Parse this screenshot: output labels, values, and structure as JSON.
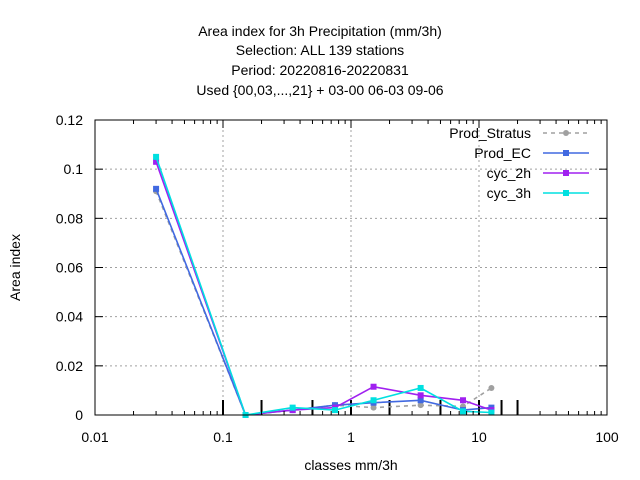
{
  "title_lines": [
    "Area index  for 3h Precipitation (mm/3h)",
    "Selection: ALL    139 stations",
    "Period: 20220816-20220831",
    "Used {00,03,...,21} + 03-00 06-03 09-06"
  ],
  "chart_data": {
    "type": "line",
    "title": "Area index  for 3h Precipitation (mm/3h)",
    "xlabel": "classes mm/3h",
    "ylabel": "Area index",
    "xscale": "log",
    "xlim": [
      0.01,
      100
    ],
    "ylim": [
      0,
      0.12
    ],
    "xticks": [
      0.01,
      0.1,
      1,
      10,
      100
    ],
    "xtick_labels": [
      "0.01",
      "0.1",
      "1",
      "10",
      "100"
    ],
    "yticks": [
      0,
      0.02,
      0.04,
      0.06,
      0.08,
      0.1,
      0.12
    ],
    "ytick_labels": [
      "0",
      "0.02",
      "0.04",
      "0.06",
      "0.08",
      "0.1",
      "0.12"
    ],
    "grid": true,
    "legend_position": "top-right",
    "class_boundaries": [
      0.1,
      0.2,
      0.5,
      1,
      2,
      5,
      10,
      15,
      20
    ],
    "series": [
      {
        "name": "Prod_Stratus",
        "color": "#a0a0a0",
        "dashed": true,
        "x": [
          0.03,
          0.15,
          0.35,
          0.75,
          1.5,
          3.5,
          7.5,
          12.5
        ],
        "y": [
          0.091,
          0.0,
          0.002,
          0.004,
          0.003,
          0.004,
          0.0035,
          0.011
        ]
      },
      {
        "name": "Prod_EC",
        "color": "#4169e1",
        "dashed": false,
        "x": [
          0.03,
          0.15,
          0.35,
          0.75,
          1.5,
          3.5,
          7.5,
          12.5
        ],
        "y": [
          0.092,
          0.0,
          0.002,
          0.004,
          0.005,
          0.006,
          0.002,
          0.003
        ]
      },
      {
        "name": "cyc_2h",
        "color": "#a020f0",
        "dashed": false,
        "x": [
          0.03,
          0.15,
          0.35,
          0.75,
          1.5,
          3.5,
          7.5,
          12.5
        ],
        "y": [
          0.103,
          0.0,
          0.002,
          0.003,
          0.0115,
          0.008,
          0.006,
          0.002
        ]
      },
      {
        "name": "cyc_3h",
        "color": "#00e0e0",
        "dashed": false,
        "x": [
          0.03,
          0.15,
          0.35,
          0.75,
          1.5,
          3.5,
          7.5,
          12.5
        ],
        "y": [
          0.105,
          0.0,
          0.003,
          0.002,
          0.006,
          0.011,
          0.0015,
          0.001
        ]
      }
    ]
  }
}
